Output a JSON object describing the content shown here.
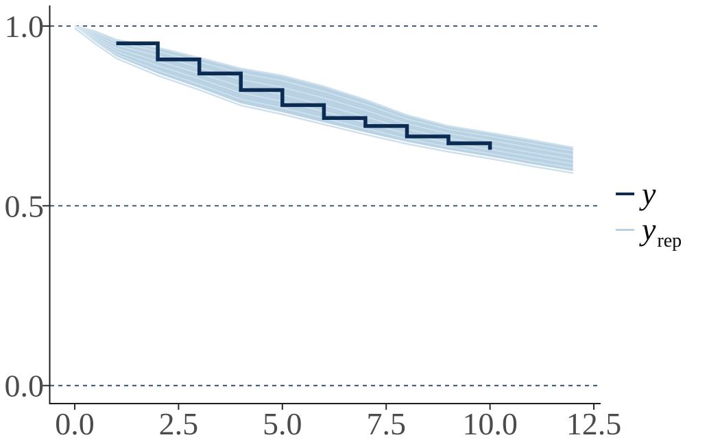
{
  "figure": {
    "background": "#ffffff",
    "colors": {
      "km_line": "#0c2b52",
      "band_fill": "#b9d2e3",
      "band_fringe": "#cee0ed",
      "streak": "#dae8f2",
      "gridline": "#24436b",
      "axis": "#1c1c1c",
      "tick": "#2a2a2a",
      "tick_label": "#4b4b4b"
    },
    "legend": {
      "position": "right",
      "entries": [
        {
          "label": "y",
          "subscript": "",
          "color": "#0c2b52",
          "weight": "thick"
        },
        {
          "label": "y",
          "subscript": "rep",
          "color": "#b9d2e3",
          "weight": "thin"
        }
      ]
    }
  },
  "chart_data": {
    "type": "line",
    "subtype": "kaplan-meier-overlay",
    "title": "",
    "xlabel": "",
    "ylabel": "",
    "grid": "horizontal-dashed",
    "legend_position": "right",
    "x_axis": {
      "range": [
        0,
        12.65
      ],
      "tick_values": [
        0,
        2.5,
        5,
        7.5,
        10,
        12.5
      ],
      "tick_labels": [
        "0.0",
        "2.5",
        "5.0",
        "7.5",
        "10.0",
        "12.5"
      ]
    },
    "y_axis": {
      "range": [
        0,
        1
      ],
      "tick_values": [
        0,
        0.5,
        1
      ],
      "tick_labels": [
        "0.0",
        "0.5",
        "1.0"
      ]
    },
    "series": [
      {
        "name": "y",
        "kind": "step",
        "color": "#0c2b52",
        "x": [
          1,
          2,
          3,
          4,
          5,
          6,
          7,
          8,
          9,
          10
        ],
        "survival": [
          0.952,
          0.907,
          0.868,
          0.822,
          0.78,
          0.744,
          0.722,
          0.693,
          0.674
        ],
        "end_drop_to": 0.656
      },
      {
        "name": "y_rep",
        "kind": "band",
        "color": "#b9d2e3",
        "x": [
          0,
          0.5,
          1,
          2,
          3,
          4,
          5,
          6,
          7,
          8,
          9,
          10,
          11,
          12
        ],
        "top": [
          1.0,
          0.985,
          0.962,
          0.94,
          0.912,
          0.882,
          0.862,
          0.832,
          0.795,
          0.752,
          0.722,
          0.703,
          0.683,
          0.662
        ],
        "bottom": [
          1.0,
          0.956,
          0.916,
          0.868,
          0.828,
          0.785,
          0.76,
          0.732,
          0.704,
          0.678,
          0.656,
          0.637,
          0.616,
          0.597
        ]
      }
    ]
  }
}
